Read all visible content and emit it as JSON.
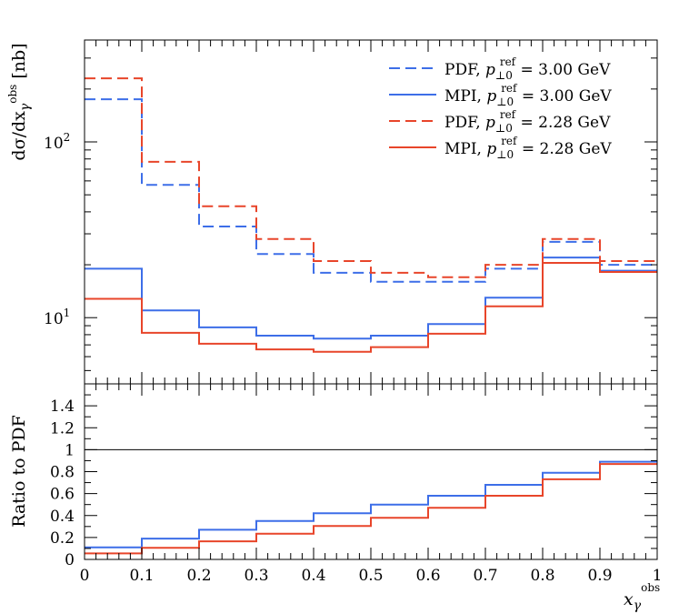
{
  "chart_data": [
    {
      "type": "line",
      "panel": "main",
      "step": true,
      "xlim": [
        0,
        1
      ],
      "ylim": [
        4.2,
        380
      ],
      "y_scale": "log",
      "ylabel": "dσ/dx_γ^obs [nb]",
      "y_ticks": [
        {
          "value": 10,
          "base": "10",
          "exp": "1"
        },
        {
          "value": 100,
          "base": "10",
          "exp": "2"
        }
      ],
      "bin_edges": [
        0,
        0.1,
        0.2,
        0.3,
        0.4,
        0.5,
        0.6,
        0.7,
        0.8,
        0.9,
        1.0
      ],
      "legend_position": "top-right",
      "series": [
        {
          "name": "PDF, p_⊥0^ref = 3.00 GeV",
          "color": "#3d6ee8",
          "dash": true,
          "values": [
            175,
            57,
            33,
            23,
            18,
            16,
            16,
            19,
            27,
            20
          ]
        },
        {
          "name": "MPI, p_⊥0^ref = 3.00 GeV",
          "color": "#3d6ee8",
          "dash": false,
          "values": [
            19,
            11,
            8.8,
            7.9,
            7.6,
            7.9,
            9.2,
            13,
            22,
            18.5
          ]
        },
        {
          "name": "PDF, p_⊥0^ref = 2.28 GeV",
          "color": "#e8452a",
          "dash": true,
          "values": [
            230,
            77,
            43,
            28,
            21,
            18,
            17,
            20,
            28,
            21
          ]
        },
        {
          "name": "MPI, p_⊥0^ref = 2.28 GeV",
          "color": "#e8452a",
          "dash": false,
          "values": [
            12.8,
            8.2,
            7.1,
            6.6,
            6.4,
            6.8,
            8.1,
            11.6,
            20.5,
            18.2
          ]
        }
      ]
    },
    {
      "type": "line",
      "panel": "ratio",
      "step": true,
      "xlim": [
        0,
        1
      ],
      "ylim": [
        0,
        1.6
      ],
      "ylabel": "Ratio to PDF",
      "xlabel": "x_γ^obs",
      "x_ticks": [
        "0",
        "0.1",
        "0.2",
        "0.3",
        "0.4",
        "0.5",
        "0.6",
        "0.7",
        "0.8",
        "0.9",
        "1"
      ],
      "y_ticks": [
        "0",
        "0.2",
        "0.4",
        "0.6",
        "0.8",
        "1",
        "1.2",
        "1.4"
      ],
      "reference_line": 1,
      "bin_edges": [
        0,
        0.1,
        0.2,
        0.3,
        0.4,
        0.5,
        0.6,
        0.7,
        0.8,
        0.9,
        1.0
      ],
      "series": [
        {
          "name": "MPI/PDF, p_⊥0^ref = 3.00 GeV",
          "color": "#3d6ee8",
          "values": [
            0.11,
            0.19,
            0.27,
            0.35,
            0.42,
            0.5,
            0.58,
            0.68,
            0.79,
            0.89
          ]
        },
        {
          "name": "MPI/PDF, p_⊥0^ref = 2.28 GeV",
          "color": "#e8452a",
          "values": [
            0.055,
            0.105,
            0.165,
            0.235,
            0.305,
            0.38,
            0.47,
            0.58,
            0.73,
            0.87
          ]
        }
      ]
    }
  ]
}
